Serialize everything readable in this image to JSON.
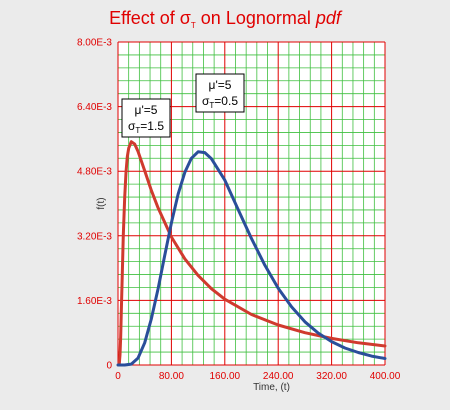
{
  "colors": {
    "background": "#ebebeb",
    "plot_bg": "#ffffff",
    "grid_minor": "#3fbf3f",
    "grid_major": "#e00000",
    "title": "#e00000",
    "ticks": "#e00000",
    "series_red": "#d03a2e",
    "series_blue": "#2a4e9a"
  },
  "chart_data": {
    "type": "line",
    "title": {
      "prefix": "Effect of σ",
      "sub": "T",
      "middle": " on Lognormal ",
      "italic": "pdf"
    },
    "xlabel": "Time, (t)",
    "ylabel": "f(t)",
    "xlim": [
      0,
      400
    ],
    "ylim": [
      0,
      0.008
    ],
    "x_ticks": [
      0,
      80,
      160,
      240,
      320,
      400
    ],
    "x_tick_labels": [
      "0",
      "80.00",
      "160.00",
      "240.00",
      "320.00",
      "400.00"
    ],
    "y_ticks": [
      0,
      0.0016,
      0.0032,
      0.0048,
      0.0064,
      0.008
    ],
    "y_tick_labels": [
      "0",
      "1.60E-3",
      "3.20E-3",
      "4.80E-3",
      "6.40E-3",
      "8.00E-3"
    ],
    "grid": true,
    "series": [
      {
        "color": "#d03a2e",
        "x": [
          1,
          2,
          3,
          4,
          5,
          6,
          8,
          10,
          12,
          14,
          16,
          20,
          25,
          30,
          40,
          50,
          60,
          80,
          100,
          120,
          140,
          160,
          200,
          240,
          280,
          320,
          360,
          400
        ],
        "y": [
          4e-07,
          3.5e-05,
          0.00025,
          0.00071,
          0.00132,
          0.00198,
          0.00322,
          0.00415,
          0.00477,
          0.00516,
          0.00537,
          0.00553,
          0.00547,
          0.00529,
          0.00481,
          0.00432,
          0.00389,
          0.00317,
          0.00263,
          0.00222,
          0.00189,
          0.00163,
          0.00125,
          0.00099,
          0.0008,
          0.00066,
          0.00055,
          0.00047
        ]
      },
      {
        "color": "#2a4e9a",
        "x": [
          0,
          10,
          20,
          30,
          40,
          50,
          60,
          70,
          80,
          90,
          100,
          110,
          120,
          130,
          140,
          160,
          180,
          200,
          220,
          240,
          260,
          280,
          300,
          320,
          340,
          360,
          380,
          400
        ],
        "y": [
          0,
          4e-07,
          2.2e-05,
          0.00017,
          0.00055,
          0.00115,
          0.00189,
          0.00271,
          0.00352,
          0.00423,
          0.00477,
          0.00512,
          0.00528,
          0.00526,
          0.00511,
          0.00458,
          0.00385,
          0.00313,
          0.00247,
          0.0019,
          0.00144,
          0.00107,
          0.00079,
          0.00058,
          0.00042,
          0.00031,
          0.00022,
          0.00016
        ]
      }
    ],
    "annotations": [
      {
        "line1": "μ'=5",
        "sigma": "σ",
        "sub": "T",
        "value": "=1.5"
      },
      {
        "line1": "μ'=5",
        "sigma": "σ",
        "sub": "T",
        "value": "=0.5"
      }
    ]
  }
}
